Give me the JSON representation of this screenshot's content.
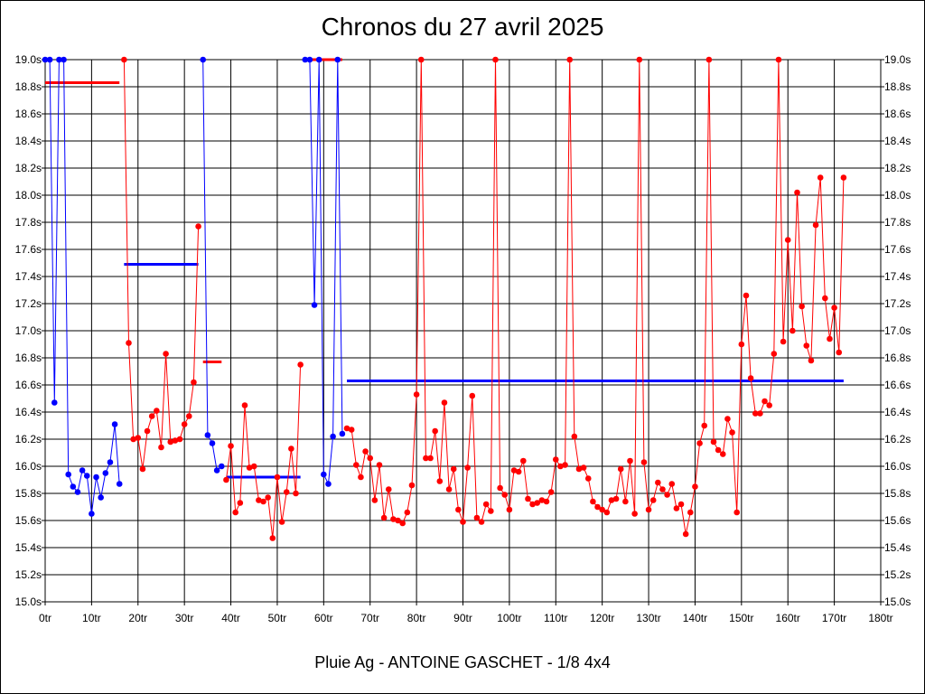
{
  "chart_data": {
    "type": "line",
    "title": "Chronos du 27 avril 2025",
    "subtitle": "Pluie Ag - ANTOINE GASCHET - 1/8 4x4",
    "xlim": [
      0,
      180
    ],
    "ylim": [
      15.0,
      19.0
    ],
    "x_ticks": [
      0,
      10,
      20,
      30,
      40,
      50,
      60,
      70,
      80,
      90,
      100,
      110,
      120,
      130,
      140,
      150,
      160,
      170,
      180
    ],
    "x_tick_suffix": "tr",
    "y_ticks": [
      15.0,
      15.2,
      15.4,
      15.6,
      15.8,
      16.0,
      16.2,
      16.4,
      16.6,
      16.8,
      17.0,
      17.2,
      17.4,
      17.6,
      17.8,
      18.0,
      18.2,
      18.4,
      18.6,
      18.8,
      19.0
    ],
    "y_tick_suffix": "s",
    "grid": true,
    "colors": {
      "blue": "#0000ff",
      "red": "#ff0000"
    },
    "segments": [
      {
        "color": "blue",
        "points": [
          [
            0,
            19.0
          ],
          [
            1,
            19.0
          ],
          [
            2,
            16.47
          ],
          [
            3,
            19.0
          ],
          [
            4,
            19.0
          ],
          [
            5,
            15.94
          ],
          [
            6,
            15.85
          ],
          [
            7,
            15.81
          ],
          [
            8,
            15.97
          ],
          [
            9,
            15.93
          ],
          [
            10,
            15.65
          ],
          [
            11,
            15.92
          ],
          [
            12,
            15.77
          ],
          [
            13,
            15.95
          ],
          [
            14,
            16.03
          ],
          [
            15,
            16.31
          ],
          [
            16,
            15.87
          ]
        ]
      },
      {
        "color": "red",
        "points": [
          [
            17,
            19.0
          ],
          [
            18,
            16.91
          ],
          [
            19,
            16.2
          ],
          [
            20,
            16.21
          ],
          [
            21,
            15.98
          ],
          [
            22,
            16.26
          ],
          [
            23,
            16.37
          ],
          [
            24,
            16.41
          ],
          [
            25,
            16.14
          ],
          [
            26,
            16.83
          ],
          [
            27,
            16.18
          ],
          [
            28,
            16.19
          ],
          [
            29,
            16.2
          ],
          [
            30,
            16.31
          ],
          [
            31,
            16.37
          ],
          [
            32,
            16.62
          ],
          [
            33,
            17.77
          ]
        ]
      },
      {
        "color": "blue",
        "points": [
          [
            34,
            19.0
          ],
          [
            35,
            16.23
          ],
          [
            36,
            16.17
          ],
          [
            37,
            15.97
          ],
          [
            38,
            16.0
          ]
        ]
      },
      {
        "color": "red",
        "points": [
          [
            39,
            15.9
          ],
          [
            40,
            16.15
          ],
          [
            41,
            15.66
          ],
          [
            42,
            15.73
          ],
          [
            43,
            16.45
          ],
          [
            44,
            15.99
          ],
          [
            45,
            16.0
          ],
          [
            46,
            15.75
          ],
          [
            47,
            15.74
          ],
          [
            48,
            15.77
          ],
          [
            49,
            15.47
          ],
          [
            50,
            15.92
          ],
          [
            51,
            15.59
          ],
          [
            52,
            15.81
          ],
          [
            53,
            16.13
          ],
          [
            54,
            15.8
          ],
          [
            55,
            16.75
          ]
        ]
      },
      {
        "color": "blue",
        "points": [
          [
            56,
            19.0
          ],
          [
            57,
            19.0
          ],
          [
            58,
            17.19
          ],
          [
            59,
            19.0
          ],
          [
            60,
            15.94
          ],
          [
            61,
            15.87
          ],
          [
            62,
            16.22
          ],
          [
            63,
            19.0
          ],
          [
            64,
            16.24
          ]
        ]
      },
      {
        "color": "red",
        "points": [
          [
            65,
            16.28
          ],
          [
            66,
            16.27
          ],
          [
            67,
            16.01
          ],
          [
            68,
            15.92
          ],
          [
            69,
            16.11
          ],
          [
            70,
            16.06
          ],
          [
            71,
            15.75
          ],
          [
            72,
            16.01
          ],
          [
            73,
            15.62
          ],
          [
            74,
            15.83
          ],
          [
            75,
            15.61
          ],
          [
            76,
            15.6
          ],
          [
            77,
            15.58
          ],
          [
            78,
            15.66
          ],
          [
            79,
            15.86
          ],
          [
            80,
            16.53
          ],
          [
            81,
            19.0
          ],
          [
            82,
            16.06
          ],
          [
            83,
            16.06
          ],
          [
            84,
            16.26
          ],
          [
            85,
            15.89
          ],
          [
            86,
            16.47
          ],
          [
            87,
            15.83
          ],
          [
            88,
            15.98
          ],
          [
            89,
            15.68
          ],
          [
            90,
            15.59
          ],
          [
            91,
            15.99
          ],
          [
            92,
            16.52
          ],
          [
            93,
            15.62
          ],
          [
            94,
            15.59
          ],
          [
            95,
            15.72
          ],
          [
            96,
            15.67
          ],
          [
            97,
            19.0
          ],
          [
            98,
            15.84
          ],
          [
            99,
            15.79
          ],
          [
            100,
            15.68
          ],
          [
            101,
            15.97
          ],
          [
            102,
            15.96
          ],
          [
            103,
            16.04
          ],
          [
            104,
            15.76
          ],
          [
            105,
            15.72
          ],
          [
            106,
            15.73
          ],
          [
            107,
            15.75
          ],
          [
            108,
            15.74
          ],
          [
            109,
            15.81
          ],
          [
            110,
            16.05
          ],
          [
            111,
            16.0
          ],
          [
            112,
            16.01
          ],
          [
            113,
            19.0
          ],
          [
            114,
            16.22
          ],
          [
            115,
            15.98
          ],
          [
            116,
            15.99
          ],
          [
            117,
            15.91
          ],
          [
            118,
            15.74
          ],
          [
            119,
            15.7
          ],
          [
            120,
            15.68
          ],
          [
            121,
            15.66
          ],
          [
            122,
            15.75
          ],
          [
            123,
            15.76
          ],
          [
            124,
            15.98
          ],
          [
            125,
            15.74
          ],
          [
            126,
            16.04
          ],
          [
            127,
            15.65
          ],
          [
            128,
            19.0
          ],
          [
            129,
            16.03
          ],
          [
            130,
            15.68
          ],
          [
            131,
            15.75
          ],
          [
            132,
            15.88
          ],
          [
            133,
            15.83
          ],
          [
            134,
            15.79
          ],
          [
            135,
            15.87
          ],
          [
            136,
            15.69
          ],
          [
            137,
            15.72
          ],
          [
            138,
            15.5
          ],
          [
            139,
            15.66
          ],
          [
            140,
            15.85
          ],
          [
            141,
            16.17
          ],
          [
            142,
            16.3
          ],
          [
            143,
            19.0
          ],
          [
            144,
            16.18
          ],
          [
            145,
            16.12
          ],
          [
            146,
            16.09
          ],
          [
            147,
            16.35
          ],
          [
            148,
            16.25
          ],
          [
            149,
            15.66
          ],
          [
            150,
            16.9
          ],
          [
            151,
            17.26
          ],
          [
            152,
            16.65
          ],
          [
            153,
            16.39
          ],
          [
            154,
            16.39
          ],
          [
            155,
            16.48
          ],
          [
            156,
            16.45
          ],
          [
            157,
            16.83
          ],
          [
            158,
            19.0
          ],
          [
            159,
            16.92
          ],
          [
            160,
            17.67
          ],
          [
            161,
            17.0
          ],
          [
            162,
            18.02
          ],
          [
            163,
            17.18
          ],
          [
            164,
            16.89
          ],
          [
            165,
            16.78
          ],
          [
            166,
            17.78
          ],
          [
            167,
            18.13
          ],
          [
            168,
            17.24
          ],
          [
            169,
            16.94
          ],
          [
            170,
            17.17
          ],
          [
            171,
            16.84
          ],
          [
            172,
            18.13
          ]
        ]
      }
    ],
    "averages": [
      {
        "color": "red",
        "x": [
          0,
          16
        ],
        "y": 18.83
      },
      {
        "color": "blue",
        "x": [
          17,
          33
        ],
        "y": 17.49
      },
      {
        "color": "red",
        "x": [
          34,
          38
        ],
        "y": 16.77
      },
      {
        "color": "blue",
        "x": [
          39,
          55
        ],
        "y": 15.92
      },
      {
        "color": "red",
        "x": [
          56,
          64
        ],
        "y": 19.0
      },
      {
        "color": "blue",
        "x": [
          65,
          172
        ],
        "y": 16.63
      }
    ]
  }
}
